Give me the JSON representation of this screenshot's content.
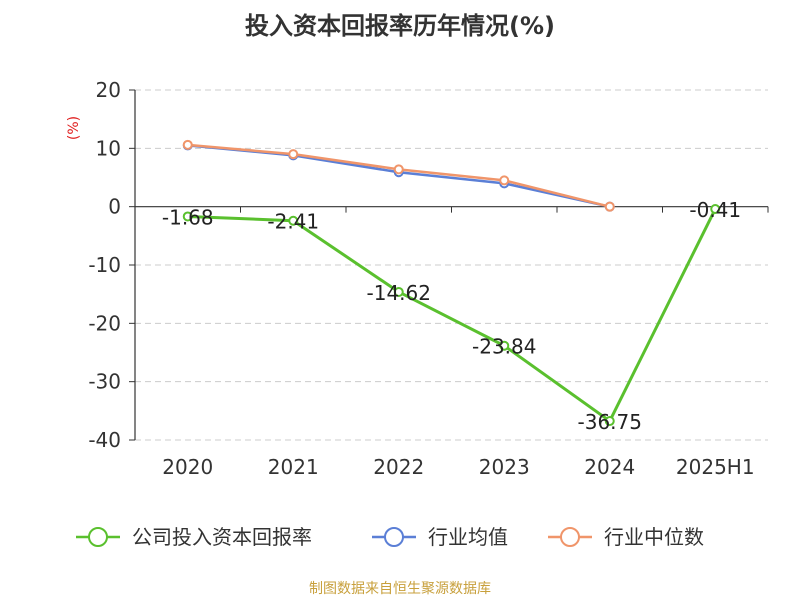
{
  "chart_data": {
    "type": "line",
    "title": "投入资本回报率历年情况(%)",
    "ylabel": "(%)",
    "categories": [
      "2020",
      "2021",
      "2022",
      "2023",
      "2024",
      "2025H1"
    ],
    "ylim": [
      -40,
      20
    ],
    "yticks": [
      20,
      10,
      0,
      -10,
      -20,
      -30,
      -40
    ],
    "grid": true,
    "legend_position": "bottom",
    "series": [
      {
        "name": "公司投入资本回报率",
        "color": "#5ac02e",
        "values": [
          -1.68,
          -2.41,
          -14.62,
          -23.84,
          -36.75,
          -0.41
        ],
        "labels": [
          "-1.68",
          "-2.41",
          "-14.62",
          "-23.84",
          "-36.75",
          "-0.41"
        ]
      },
      {
        "name": "行业均值",
        "color": "#5b7fd6",
        "values": [
          10.5,
          8.8,
          5.9,
          4.0,
          0.0,
          null
        ]
      },
      {
        "name": "行业中位数",
        "color": "#f0956a",
        "values": [
          10.6,
          9.0,
          6.4,
          4.5,
          0.0,
          null
        ]
      }
    ]
  },
  "source": "制图数据来自恒生聚源数据库"
}
